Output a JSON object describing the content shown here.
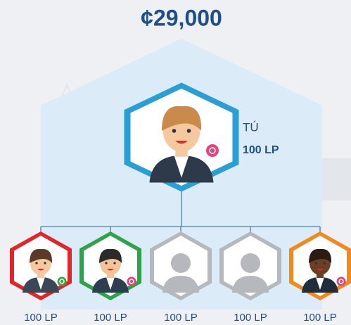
{
  "header": {
    "title": "¢29,000"
  },
  "top": {
    "label": "TÚ",
    "points": "100 LP"
  },
  "children": [
    {
      "points": "100 LP"
    },
    {
      "points": "100 LP"
    },
    {
      "points": "100 LP"
    },
    {
      "points": "100 LP"
    },
    {
      "points": "100 LP"
    }
  ]
}
